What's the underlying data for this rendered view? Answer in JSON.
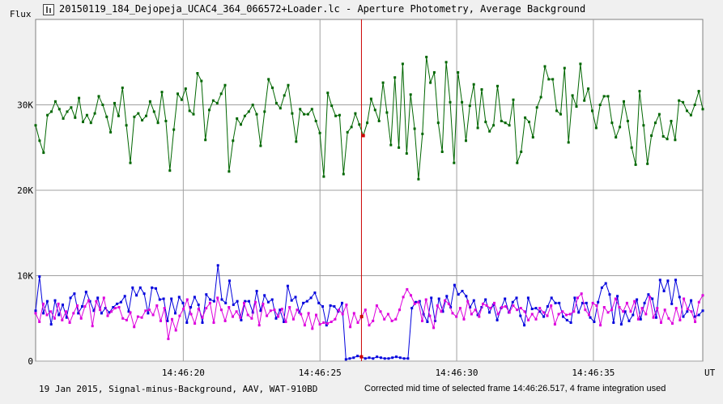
{
  "window": {
    "title": "20150119_184_Dejopeja_UCAC4_364_066572+Loader.lc - Aperture Photometry, Average Background",
    "icon": "lightcurve-icon"
  },
  "footer": {
    "left": "19 Jan 2015, Signal-minus-Background, AAV, WAT-910BD",
    "right": "Corrected mid time of selected frame 14:46:26.517, 4 frame integration used"
  },
  "colors": {
    "background": "#f0f0f0",
    "plot_background": "#ffffff",
    "grid": "#a0a0a0",
    "cursor": "#cc0000",
    "series_green": "#006600",
    "series_blue": "#0000dd",
    "series_magenta": "#dd00dd"
  },
  "chart_data": {
    "type": "line",
    "ylabel": "Flux",
    "xlabel": "UT",
    "ylim": [
      0,
      40000
    ],
    "xlim": [
      "14:46:14.6",
      "14:46:39.0"
    ],
    "y_ticks": [
      "0",
      "10K",
      "20K",
      "30K"
    ],
    "x_ticks": [
      "14:46:20",
      "14:46:25",
      "14:46:30",
      "14:46:35"
    ],
    "grid": true,
    "selected_time": "14:46:26.517",
    "series": [
      {
        "color": "#006600",
        "values": [
          27600,
          25800,
          24400,
          28800,
          29200,
          30400,
          29500,
          28400,
          29200,
          29700,
          28500,
          30800,
          28000,
          28800,
          27900,
          29000,
          31000,
          30000,
          28600,
          26800,
          30200,
          28700,
          32000,
          27600,
          23200,
          28600,
          29000,
          28200,
          28700,
          30400,
          29200,
          27900,
          31500,
          28100,
          22300,
          27100,
          31300,
          30600,
          31900,
          29300,
          28900,
          33700,
          32800,
          25900,
          29400,
          30500,
          30200,
          31300,
          32300,
          22200,
          25800,
          28400,
          27700,
          28700,
          29200,
          30000,
          28900,
          25200,
          29200,
          33000,
          32000,
          30200,
          29600,
          31100,
          32300,
          29000,
          25700,
          29500,
          28900,
          28900,
          29500,
          28100,
          26700,
          21600,
          31400,
          29900,
          28700,
          28800,
          21900,
          26800,
          27400,
          29000,
          27700,
          26400,
          27900,
          30700,
          29400,
          28100,
          32600,
          29100,
          25300,
          33200,
          25000,
          34800,
          24300,
          31200,
          27200,
          21300,
          26600,
          35600,
          32600,
          33800,
          27900,
          24500,
          35000,
          30300,
          23200,
          33800,
          30300,
          25800,
          29900,
          32400,
          27300,
          31800,
          28000,
          26900,
          27600,
          32200,
          28100,
          27900,
          27600,
          30600,
          23200,
          24500,
          28500,
          28000,
          26200,
          29700,
          30900,
          34500,
          33000,
          33000,
          29300,
          28900,
          34300,
          25600,
          31100,
          29800,
          34800,
          30500,
          31900,
          29300,
          27300,
          30000,
          31000,
          31000,
          27900,
          26200,
          27400,
          30400,
          28100,
          25000,
          23000,
          31600,
          27600,
          23100,
          26400,
          27900,
          28900,
          26300,
          26000,
          28100,
          25900,
          30500,
          30300,
          29300,
          28800,
          30000,
          31600,
          29500
        ]
      },
      {
        "color": "#0000dd",
        "values": [
          5900,
          9900,
          5600,
          7000,
          4300,
          7100,
          5400,
          6600,
          5100,
          7400,
          7900,
          5600,
          6400,
          8100,
          7000,
          5900,
          7400,
          5600,
          6200,
          5700,
          6300,
          6700,
          6900,
          7600,
          5800,
          8600,
          7700,
          8600,
          7900,
          5600,
          8600,
          8500,
          7200,
          7300,
          4700,
          7300,
          5600,
          7500,
          6800,
          4500,
          6300,
          7500,
          6600,
          4500,
          7800,
          7200,
          7000,
          11200,
          7200,
          6800,
          9400,
          6600,
          7000,
          4800,
          7000,
          7000,
          5700,
          8200,
          5900,
          7700,
          6900,
          7200,
          5000,
          6000,
          4600,
          8800,
          7100,
          7500,
          5700,
          6800,
          7000,
          7400,
          8000,
          6800,
          6400,
          4200,
          6500,
          6400,
          5800,
          6800,
          200,
          300,
          400,
          600,
          500,
          300,
          400,
          300,
          500,
          400,
          300,
          300,
          400,
          500,
          400,
          300,
          300,
          6200,
          6900,
          7000,
          5500,
          4600,
          7400,
          4700,
          7300,
          5800,
          7600,
          6300,
          8900,
          7800,
          8200,
          7600,
          6300,
          7100,
          5400,
          6300,
          7200,
          5700,
          6600,
          4800,
          6200,
          7300,
          5700,
          6900,
          7400,
          5300,
          4200,
          7400,
          6100,
          6200,
          5800,
          5200,
          6400,
          7400,
          6800,
          6800,
          5200,
          4800,
          4500,
          7400,
          5700,
          6800,
          6800,
          5100,
          4600,
          6900,
          8600,
          9100,
          7800,
          4500,
          7600,
          4300,
          5800,
          4700,
          5400,
          7200,
          4900,
          6800,
          7800,
          7300,
          5100,
          9500,
          8200,
          9400,
          6700,
          9500,
          7500,
          5200,
          5800,
          7100,
          5200,
          5400,
          5900
        ]
      },
      {
        "color": "#dd00dd",
        "values": [
          5600,
          4600,
          6700,
          5400,
          5800,
          5000,
          6700,
          4800,
          5800,
          4500,
          5600,
          6500,
          5000,
          6400,
          7100,
          4100,
          7000,
          6000,
          7400,
          5300,
          5800,
          6200,
          6300,
          5000,
          4800,
          5700,
          4000,
          5200,
          5100,
          5900,
          6000,
          5400,
          6500,
          4700,
          6200,
          2600,
          4900,
          3600,
          5300,
          6100,
          7200,
          5500,
          4400,
          6100,
          5100,
          6200,
          6800,
          4500,
          7400,
          6000,
          4700,
          6300,
          5200,
          5800,
          5100,
          6800,
          5400,
          5000,
          6900,
          4200,
          6700,
          5300,
          5900,
          6000,
          5200,
          6100,
          4600,
          6300,
          4900,
          6000,
          5500,
          4200,
          5600,
          3800,
          5400,
          4300,
          4500,
          4400,
          4600,
          4900,
          6000,
          5500,
          6600,
          4000,
          5600,
          4500,
          5200,
          6000,
          4200,
          4700,
          6500,
          5800,
          4900,
          5500,
          4700,
          4900,
          6000,
          7500,
          8400,
          7700,
          6700,
          6900,
          4700,
          7200,
          5300,
          3900,
          6500,
          5800,
          7100,
          6700,
          5600,
          5200,
          6200,
          4900,
          7000,
          5500,
          6000,
          5200,
          6700,
          6500,
          6200,
          6800,
          5500,
          6300,
          6400,
          5700,
          6500,
          6000,
          6200,
          5800,
          4800,
          5500,
          4900,
          6200,
          5700,
          5300,
          6500,
          4300,
          5500,
          5800,
          5400,
          5500,
          5800,
          7400,
          7900,
          6000,
          5400,
          6800,
          6500,
          4200,
          6300,
          5700,
          6000,
          7300,
          6300,
          5800,
          6800,
          5800,
          7000,
          4900,
          6200,
          5500,
          7500,
          5100,
          6200,
          4500,
          6000,
          5000,
          4400,
          6200,
          4800,
          7300,
          6100,
          5800,
          4600,
          6900,
          7700
        ]
      }
    ]
  }
}
